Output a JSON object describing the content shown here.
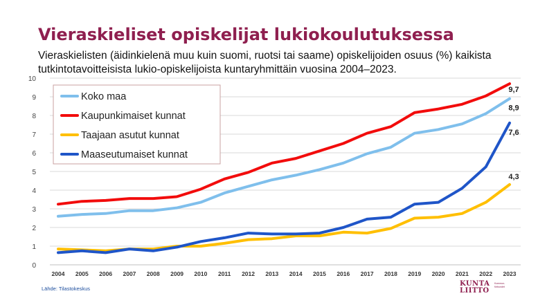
{
  "header": {
    "title": "Vieraskieliset opiskelijat lukiokoulutuksessa",
    "subtitle": "Vieraskielisten (äidinkielenä muu kuin suomi, ruotsi tai saame) opiskelijoiden osuus (%) kaikista tutkintotavoitteisista lukio-opiskelijoista kuntaryhmittäin vuosina 2004–2023."
  },
  "footer": {
    "source": "Lähde: Tilastokeskus",
    "logo_line1": "KUNTA",
    "logo_line2": "LIITTO",
    "logo_sub1": "Kommun-",
    "logo_sub2": "förbundet"
  },
  "chart_data": {
    "type": "line",
    "title": "",
    "xlabel": "",
    "ylabel": "",
    "ylim": [
      0,
      10
    ],
    "yticks": [
      0,
      1,
      2,
      3,
      4,
      5,
      6,
      7,
      8,
      9,
      10
    ],
    "grid": true,
    "legend_position": "top-left",
    "categories": [
      "2004",
      "2005",
      "2006",
      "2007",
      "2008",
      "2009",
      "2010",
      "2011",
      "2012",
      "2013",
      "2014",
      "2015",
      "2016",
      "2017",
      "2018",
      "2019",
      "2020",
      "2021",
      "2022",
      "2023"
    ],
    "series": [
      {
        "name": "Koko maa",
        "color": "#7fbfec",
        "values": [
          2.6,
          2.7,
          2.75,
          2.9,
          2.9,
          3.05,
          3.35,
          3.85,
          4.2,
          4.55,
          4.8,
          5.1,
          5.45,
          5.95,
          6.3,
          7.05,
          7.25,
          7.55,
          8.1,
          8.9
        ],
        "end_label": "8,9"
      },
      {
        "name": "Kaupunkimaiset kunnat",
        "color": "#f20c0c",
        "values": [
          3.25,
          3.4,
          3.45,
          3.55,
          3.55,
          3.65,
          4.05,
          4.6,
          4.95,
          5.45,
          5.7,
          6.1,
          6.5,
          7.05,
          7.4,
          8.15,
          8.35,
          8.6,
          9.05,
          9.7
        ],
        "end_label": "9,7"
      },
      {
        "name": "Taajaan asutut kunnat",
        "color": "#ffbf00",
        "values": [
          0.85,
          0.8,
          0.75,
          0.85,
          0.85,
          1.0,
          1.0,
          1.15,
          1.35,
          1.4,
          1.55,
          1.55,
          1.75,
          1.7,
          1.95,
          2.5,
          2.55,
          2.75,
          3.35,
          4.3
        ],
        "end_label": "4,3"
      },
      {
        "name": "Maaseutumaiset kunnat",
        "color": "#1f55c8",
        "values": [
          0.65,
          0.75,
          0.65,
          0.85,
          0.75,
          0.95,
          1.25,
          1.45,
          1.7,
          1.65,
          1.65,
          1.7,
          2.0,
          2.45,
          2.55,
          3.25,
          3.35,
          4.1,
          5.25,
          7.6
        ],
        "end_label": "7,6"
      }
    ]
  }
}
